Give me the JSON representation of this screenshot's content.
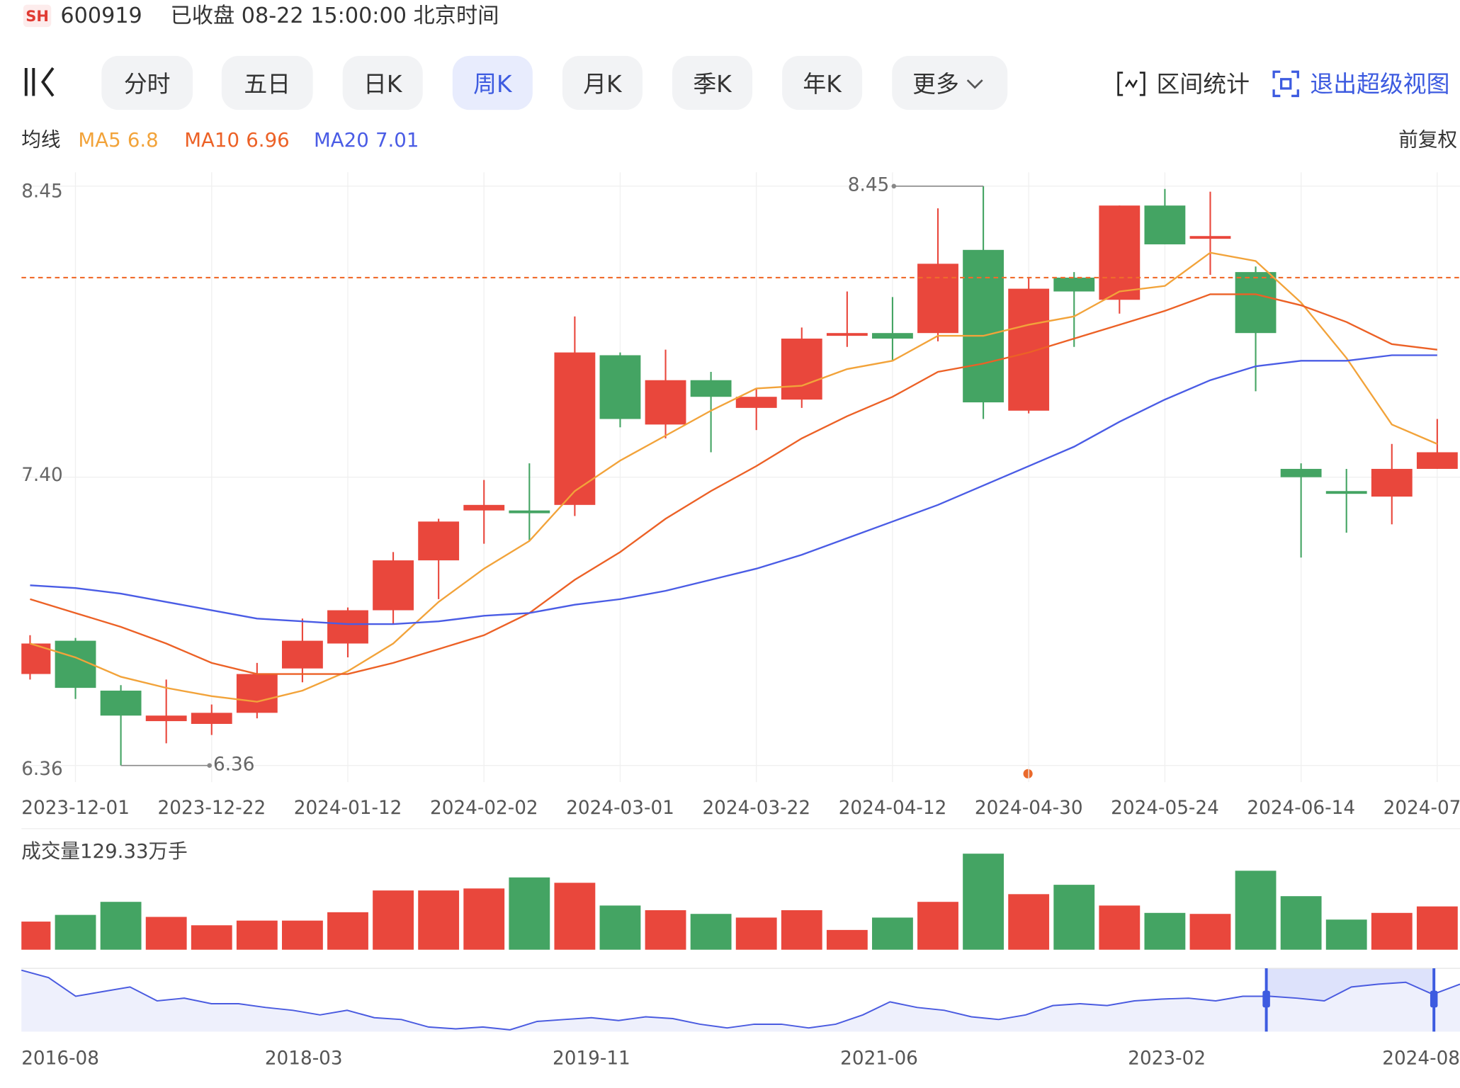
{
  "header": {
    "exchange": "SH",
    "code": "600919",
    "status": "已收盘 08-22 15:00:00 北京时间"
  },
  "tabs": [
    "分时",
    "五日",
    "日K",
    "周K",
    "月K",
    "季K",
    "年K",
    "更多"
  ],
  "active_tab": 3,
  "tools": [
    "区间统计",
    "退出超级视图"
  ],
  "indicator_label": "均线",
  "adjust": "前复权",
  "chart_data": [
    {
      "type": "candlestick",
      "categories": [
        null,
        "2023-12-01",
        null,
        null,
        "2023-12-22",
        null,
        null,
        "2024-01-12",
        null,
        null,
        "2024-02-02",
        null,
        null,
        "2024-03-01",
        null,
        null,
        "2024-03-22",
        null,
        null,
        "2024-04-12",
        null,
        null,
        "2024-04-30",
        null,
        null,
        "2024-05-24",
        null,
        null,
        "2024-06-14",
        null,
        null,
        "2024-07"
      ],
      "open": [
        6.69,
        6.81,
        6.63,
        6.52,
        6.51,
        6.55,
        6.71,
        6.8,
        6.92,
        7.1,
        7.28,
        7.28,
        7.3,
        7.84,
        7.59,
        7.75,
        7.65,
        7.68,
        7.91,
        7.92,
        7.92,
        8.22,
        7.64,
        8.12,
        8.04,
        8.38,
        8.26,
        8.14,
        7.43,
        7.35,
        7.33,
        7.43
      ],
      "high": [
        6.83,
        6.82,
        6.65,
        6.67,
        6.58,
        6.73,
        6.89,
        6.93,
        7.13,
        7.25,
        7.39,
        7.45,
        7.98,
        7.85,
        7.86,
        7.78,
        7.72,
        7.94,
        8.07,
        8.05,
        8.37,
        8.45,
        8.12,
        8.14,
        8.38,
        8.44,
        8.43,
        8.16,
        7.45,
        7.43,
        7.52,
        7.61
      ],
      "low": [
        6.67,
        6.6,
        6.36,
        6.44,
        6.47,
        6.53,
        6.66,
        6.75,
        6.87,
        6.96,
        7.16,
        7.17,
        7.26,
        7.58,
        7.54,
        7.49,
        7.57,
        7.65,
        7.87,
        7.82,
        7.89,
        7.61,
        7.63,
        7.87,
        7.99,
        8.24,
        8.13,
        7.71,
        7.11,
        7.2,
        7.23,
        7.43
      ],
      "close": [
        6.8,
        6.64,
        6.54,
        6.54,
        6.55,
        6.69,
        6.81,
        6.92,
        7.1,
        7.24,
        7.3,
        7.27,
        7.85,
        7.61,
        7.75,
        7.69,
        7.69,
        7.9,
        7.92,
        7.9,
        8.17,
        7.67,
        8.08,
        8.07,
        8.38,
        8.24,
        8.27,
        7.92,
        7.4,
        7.34,
        7.43,
        7.49
      ],
      "series": [
        {
          "name": "MA5",
          "color": "#f2a33a",
          "values": [
            6.8,
            6.75,
            6.68,
            6.64,
            6.61,
            6.59,
            6.63,
            6.7,
            6.8,
            6.95,
            7.07,
            7.17,
            7.35,
            7.46,
            7.55,
            7.64,
            7.72,
            7.73,
            7.79,
            7.82,
            7.91,
            7.91,
            7.95,
            7.98,
            8.07,
            8.09,
            8.21,
            8.18,
            8.03,
            7.83,
            7.59,
            7.52
          ]
        },
        {
          "name": "MA10",
          "color": "#ec6126",
          "values": [
            6.96,
            6.91,
            6.86,
            6.8,
            6.73,
            6.69,
            6.69,
            6.69,
            6.73,
            6.78,
            6.83,
            6.91,
            7.03,
            7.13,
            7.25,
            7.35,
            7.44,
            7.54,
            7.62,
            7.69,
            7.78,
            7.81,
            7.85,
            7.9,
            7.95,
            8.0,
            8.06,
            8.06,
            8.02,
            7.96,
            7.88,
            7.86
          ]
        },
        {
          "name": "MA20",
          "color": "#4a5ce5",
          "values": [
            7.01,
            7.0,
            6.98,
            6.95,
            6.92,
            6.89,
            6.88,
            6.87,
            6.87,
            6.88,
            6.9,
            6.91,
            6.94,
            6.96,
            6.99,
            7.03,
            7.07,
            7.12,
            7.18,
            7.24,
            7.3,
            7.37,
            7.44,
            7.51,
            7.6,
            7.68,
            7.75,
            7.8,
            7.82,
            7.82,
            7.84,
            7.84
          ]
        }
      ],
      "up_color": "#e9473c",
      "down_color": "#44a463",
      "ylim": [
        6.3,
        8.5
      ],
      "yticks": [
        8.45,
        {
          "value": 7.4,
          "label": "7.40"
        },
        6.36
      ],
      "grid": true,
      "reference_line": 8.12,
      "volume_title": "成交量129.33万手",
      "volume": [
        84,
        104,
        143,
        98,
        73,
        87,
        87,
        112,
        177,
        177,
        183,
        216,
        200,
        132,
        118,
        107,
        96,
        118,
        59,
        96,
        143,
        287,
        166,
        194,
        132,
        110,
        107,
        236,
        160,
        90,
        110,
        129.33
      ],
      "volume_ylim": [
        0,
        320
      ]
    },
    {
      "type": "line",
      "color": "#4a5be0",
      "values": [
        11.29,
        10.47,
        8.41,
        8.93,
        9.44,
        7.9,
        8.2,
        7.59,
        7.59,
        7.17,
        6.86,
        6.35,
        6.86,
        6.04,
        5.84,
        5.01,
        4.81,
        5.01,
        4.7,
        5.63,
        5.84,
        6.04,
        5.73,
        6.14,
        5.94,
        5.32,
        4.91,
        5.32,
        5.32,
        4.91,
        5.32,
        6.35,
        7.79,
        7.17,
        6.86,
        6.14,
        5.84,
        6.35,
        7.38,
        7.59,
        7.38,
        7.9,
        8.1,
        8.2,
        7.9,
        8.41,
        8.41,
        8.2,
        7.9,
        9.44,
        9.75,
        9.96,
        8.62,
        9.75
      ],
      "ylim": [
        4.5,
        11.5
      ],
      "xlim": [
        0,
        53
      ],
      "xticks": [
        {
          "value": 0,
          "label": "2016-08"
        },
        {
          "value": 10.4,
          "label": "2018-03"
        },
        {
          "value": 21,
          "label": "2019-11"
        },
        {
          "value": 31.6,
          "label": "2021-06"
        },
        {
          "value": 42.2,
          "label": "2023-02"
        },
        {
          "value": 53,
          "label": "2024-08"
        }
      ]
    }
  ]
}
